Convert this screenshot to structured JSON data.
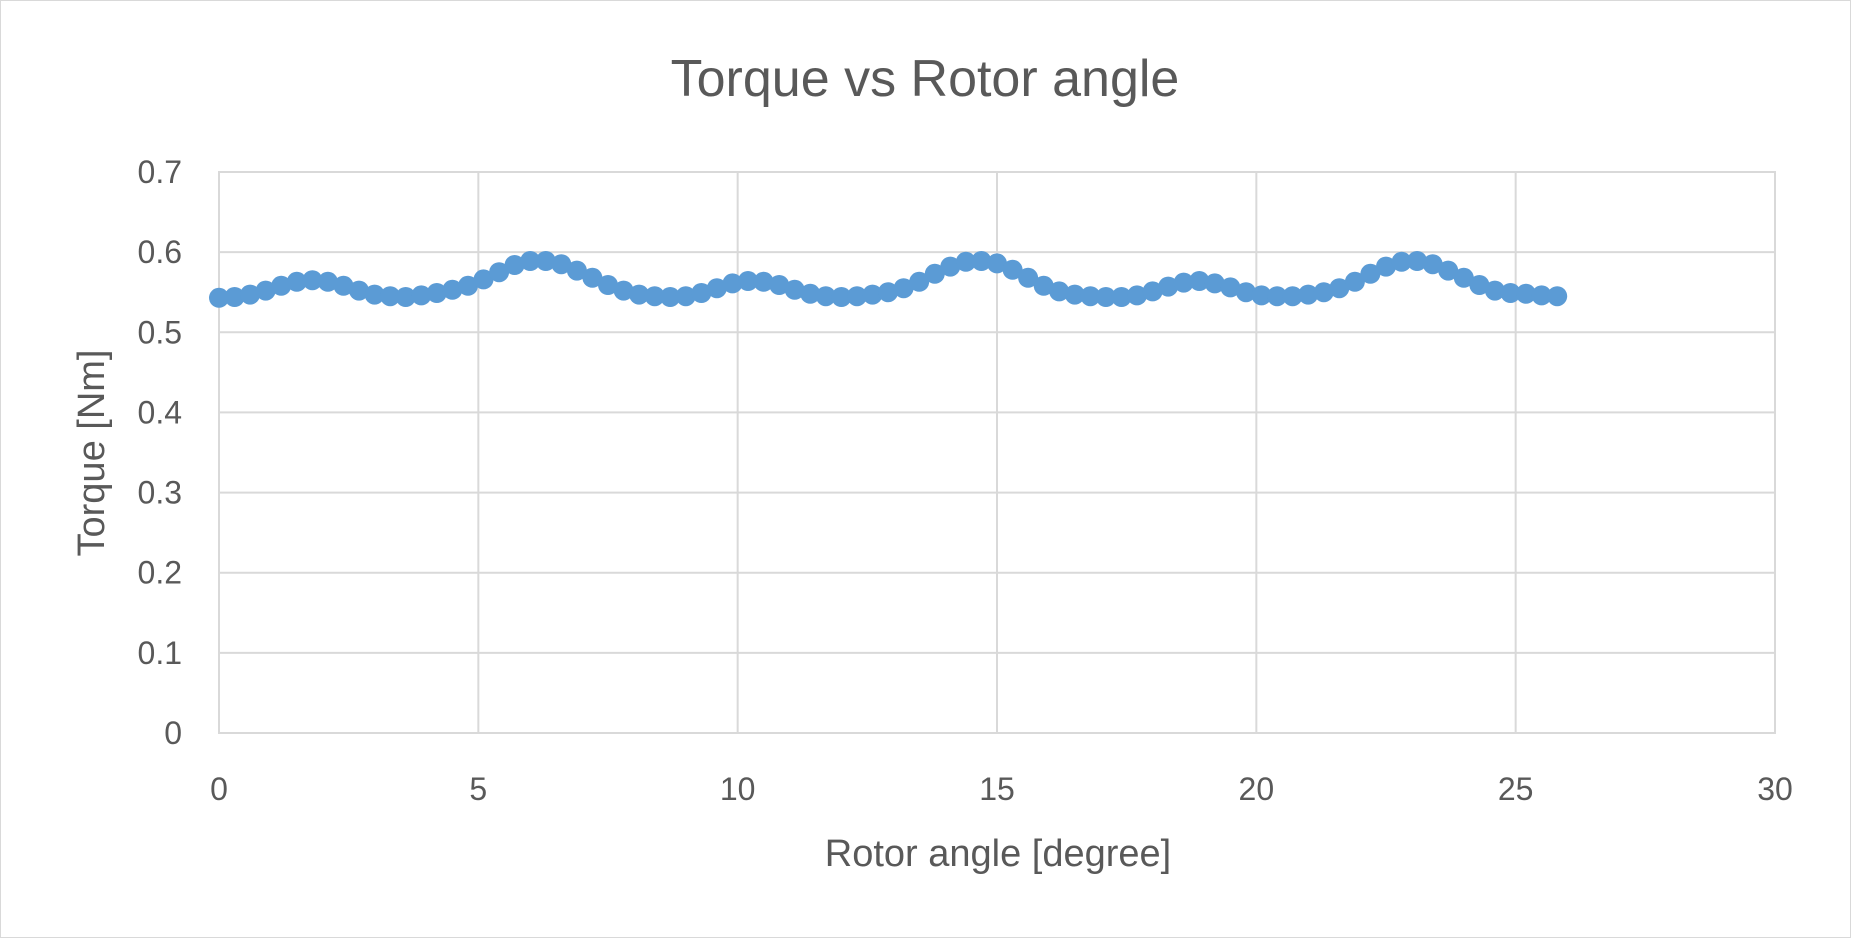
{
  "chart_data": {
    "type": "scatter",
    "title": "Torque vs Rotor angle",
    "xlabel": "Rotor angle [degree]",
    "ylabel": "Torque [Nm]",
    "xlim": [
      0,
      30
    ],
    "ylim": [
      0,
      0.7
    ],
    "x_ticks": [
      "0",
      "5",
      "10",
      "15",
      "20",
      "25",
      "30"
    ],
    "y_ticks": [
      "0",
      "0.1",
      "0.2",
      "0.3",
      "0.4",
      "0.5",
      "0.6",
      "0.7"
    ],
    "grid": true,
    "legend": "none",
    "marker_color": "#5b9bd5",
    "series": [
      {
        "x": [
          0,
          0.3,
          0.6,
          0.9,
          1.2,
          1.5,
          1.8,
          2.1,
          2.4,
          2.7,
          3.0,
          3.3,
          3.6,
          3.9,
          4.2,
          4.5,
          4.8,
          5.1,
          5.4,
          5.7,
          6.0,
          6.3,
          6.6,
          6.9,
          7.2,
          7.5,
          7.8,
          8.1,
          8.4,
          8.7,
          9.0,
          9.3,
          9.6,
          9.9,
          10.2,
          10.5,
          10.8,
          11.1,
          11.4,
          11.7,
          12.0,
          12.3,
          12.6,
          12.9,
          13.2,
          13.5,
          13.8,
          14.1,
          14.4,
          14.7,
          15.0,
          15.3,
          15.6,
          15.9,
          16.2,
          16.5,
          16.8,
          17.1,
          17.4,
          17.7,
          18.0,
          18.3,
          18.6,
          18.9,
          19.2,
          19.5,
          19.8,
          20.1,
          20.4,
          20.7,
          21.0,
          21.3,
          21.6,
          21.9,
          22.2,
          22.5,
          22.8,
          23.1,
          23.4,
          23.7,
          24.0,
          24.3,
          24.6,
          24.9,
          25.2,
          25.5,
          25.8
        ],
        "y": [
          0.543,
          0.544,
          0.547,
          0.552,
          0.558,
          0.563,
          0.565,
          0.563,
          0.558,
          0.552,
          0.547,
          0.545,
          0.544,
          0.546,
          0.549,
          0.553,
          0.558,
          0.566,
          0.575,
          0.584,
          0.589,
          0.589,
          0.585,
          0.577,
          0.568,
          0.559,
          0.552,
          0.547,
          0.545,
          0.544,
          0.545,
          0.549,
          0.555,
          0.561,
          0.564,
          0.563,
          0.559,
          0.553,
          0.548,
          0.545,
          0.544,
          0.545,
          0.547,
          0.55,
          0.555,
          0.563,
          0.573,
          0.582,
          0.588,
          0.589,
          0.586,
          0.578,
          0.568,
          0.558,
          0.551,
          0.547,
          0.545,
          0.544,
          0.544,
          0.546,
          0.551,
          0.557,
          0.562,
          0.564,
          0.561,
          0.556,
          0.55,
          0.546,
          0.545,
          0.545,
          0.547,
          0.55,
          0.555,
          0.563,
          0.573,
          0.582,
          0.588,
          0.589,
          0.585,
          0.577,
          0.568,
          0.559,
          0.552,
          0.549,
          0.548,
          0.546,
          0.545
        ]
      }
    ]
  }
}
